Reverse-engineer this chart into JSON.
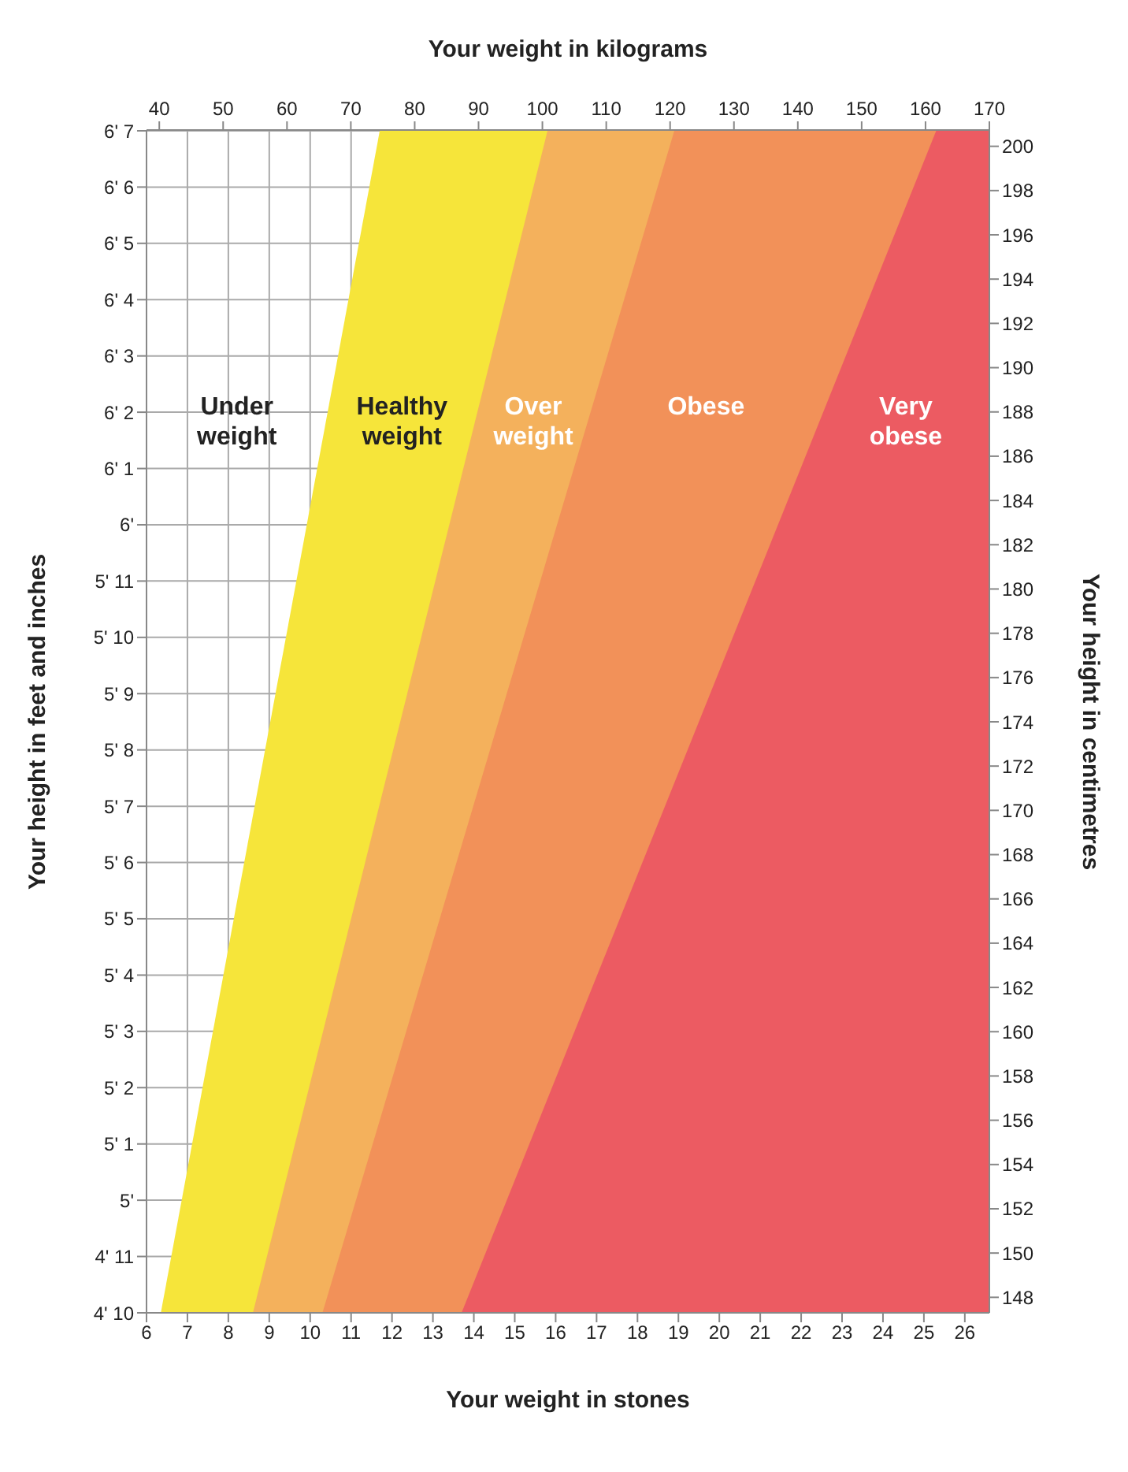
{
  "chart_data": {
    "type": "area",
    "xlabel": "Your weight in stones",
    "x2label": "Your weight in kilograms",
    "ylabel": "Your height in feet and inches",
    "y2label": "Your height in centimetres",
    "xlim": [
      6,
      26.6
    ],
    "xticks": [
      6,
      7,
      8,
      9,
      10,
      11,
      12,
      13,
      14,
      15,
      16,
      17,
      18,
      19,
      20,
      21,
      22,
      23,
      24,
      25,
      26
    ],
    "x2lim": [
      38,
      170
    ],
    "x2ticks": [
      40,
      50,
      60,
      70,
      80,
      90,
      100,
      110,
      120,
      130,
      140,
      150,
      160,
      170
    ],
    "ylim": [
      4.8333,
      6.5833
    ],
    "yticks": [
      {
        "value": 4.8333,
        "label": "4' 10"
      },
      {
        "value": 4.9167,
        "label": "4' 11"
      },
      {
        "value": 5,
        "label": "5'"
      },
      {
        "value": 5.0833,
        "label": "5' 1"
      },
      {
        "value": 5.1667,
        "label": "5' 2"
      },
      {
        "value": 5.25,
        "label": "5' 3"
      },
      {
        "value": 5.3333,
        "label": "5' 4"
      },
      {
        "value": 5.4167,
        "label": "5' 5"
      },
      {
        "value": 5.5,
        "label": "5' 6"
      },
      {
        "value": 5.5833,
        "label": "5' 7"
      },
      {
        "value": 5.6667,
        "label": "5' 8"
      },
      {
        "value": 5.75,
        "label": "5' 9"
      },
      {
        "value": 5.8333,
        "label": "5' 10"
      },
      {
        "value": 5.9167,
        "label": "5' 11"
      },
      {
        "value": 6,
        "label": "6'"
      },
      {
        "value": 6.0833,
        "label": "6' 1"
      },
      {
        "value": 6.1667,
        "label": "6' 2"
      },
      {
        "value": 6.25,
        "label": "6' 3"
      },
      {
        "value": 6.3333,
        "label": "6' 4"
      },
      {
        "value": 6.4167,
        "label": "6' 5"
      },
      {
        "value": 6.5,
        "label": "6' 6"
      },
      {
        "value": 6.5833,
        "label": "6' 7"
      }
    ],
    "y2lim": [
      147.3,
      200.7
    ],
    "y2ticks": [
      148,
      150,
      152,
      154,
      156,
      158,
      160,
      162,
      164,
      166,
      168,
      170,
      172,
      174,
      176,
      178,
      180,
      182,
      184,
      186,
      188,
      190,
      192,
      194,
      196,
      198,
      200
    ],
    "grid": true,
    "legend": false,
    "series": [
      {
        "color": "#f6e53a",
        "x": [
          6.35,
          11.7,
          26.6
        ],
        "values": [
          4.8333,
          6.5833,
          6.5833
        ]
      },
      {
        "color": "#f4b15c",
        "x": [
          8.6,
          15.8,
          26.6
        ],
        "values": [
          4.8333,
          6.5833,
          6.5833
        ]
      },
      {
        "color": "#f29159",
        "x": [
          10.3,
          18.9,
          26.6
        ],
        "values": [
          4.8333,
          6.5833,
          6.5833
        ]
      },
      {
        "color": "#ec5b62",
        "x": [
          13.7,
          25.3,
          26.6
        ],
        "values": [
          4.8333,
          6.5833,
          6.5833
        ]
      }
    ],
    "annotations": [
      "Under\nweight",
      "Healthy\nweight",
      "Over\nweight",
      "Obese",
      "Very\nobese"
    ]
  }
}
